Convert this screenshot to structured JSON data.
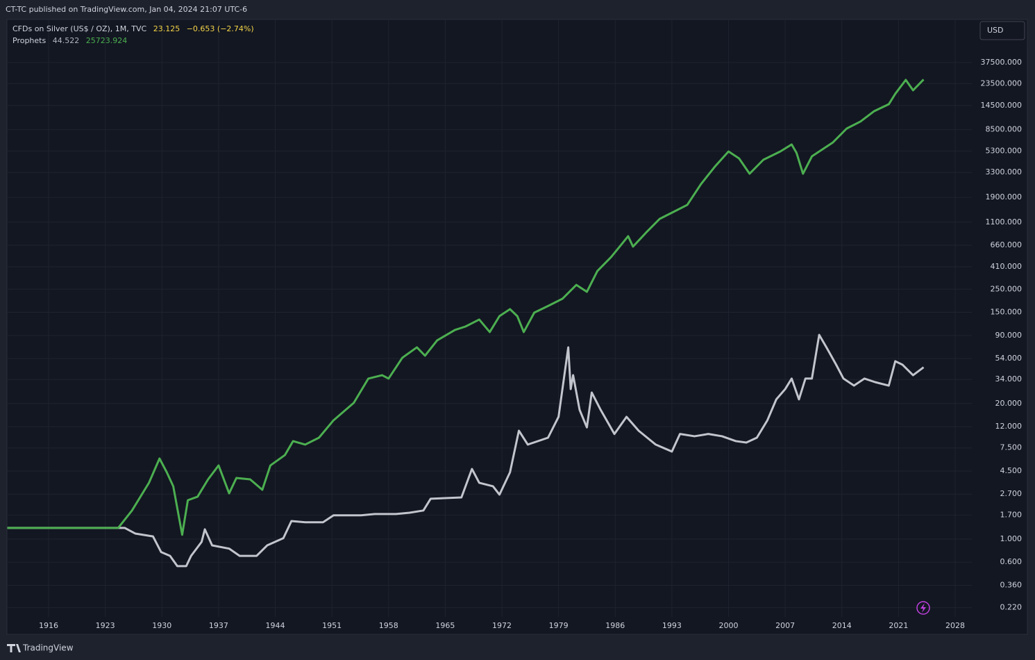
{
  "header": {
    "published": "CT-TC published on TradingView.com, Jan 04, 2024 21:07 UTC-6",
    "currency": "USD",
    "footer": "TradingView"
  },
  "chart_data": {
    "type": "line",
    "log_scale": true,
    "grid": true,
    "xlim": [
      1910.85,
      2030.06
    ],
    "xticks": [
      1916,
      1923,
      1930,
      1937,
      1944,
      1951,
      1958,
      1965,
      1972,
      1979,
      1986,
      1993,
      2000,
      2007,
      2014,
      2021,
      2028
    ],
    "ylim": [
      0.179,
      97000
    ],
    "yticks": [
      {
        "value": 0.22,
        "label": "0.220"
      },
      {
        "value": 0.36,
        "label": "0.360"
      },
      {
        "value": 0.6,
        "label": "0.600"
      },
      {
        "value": 1,
        "label": "1.000"
      },
      {
        "value": 1.7,
        "label": "1.700"
      },
      {
        "value": 2.7,
        "label": "2.700"
      },
      {
        "value": 4.5,
        "label": "4.500"
      },
      {
        "value": 7.5,
        "label": "7.500"
      },
      {
        "value": 12,
        "label": "12.000"
      },
      {
        "value": 20,
        "label": "20.000"
      },
      {
        "value": 34,
        "label": "34.000"
      },
      {
        "value": 54,
        "label": "54.000"
      },
      {
        "value": 90,
        "label": "90.000"
      },
      {
        "value": 150,
        "label": "150.000"
      },
      {
        "value": 250,
        "label": "250.000"
      },
      {
        "value": 410,
        "label": "410.000"
      },
      {
        "value": 660,
        "label": "660.000"
      },
      {
        "value": 1100,
        "label": "1100.000"
      },
      {
        "value": 1900,
        "label": "1900.000"
      },
      {
        "value": 3300,
        "label": "3300.000"
      },
      {
        "value": 5300,
        "label": "5300.000"
      },
      {
        "value": 8500,
        "label": "8500.000"
      },
      {
        "value": 14500,
        "label": "14500.000"
      },
      {
        "value": 23500,
        "label": "23500.000"
      },
      {
        "value": 37500,
        "label": "37500.000"
      }
    ],
    "series": [
      {
        "name": "CFDs on Silver (US$ / OZ), 1M, TVC",
        "color": "#c3c5cd",
        "legend_values": [
          "23.125",
          "−0.653 (−2.74%)"
        ],
        "legend_color": "#f5d547",
        "x": [
          1910.9,
          1924.6,
          1925.4,
          1926.7,
          1928.9,
          1929.9,
          1931.0,
          1931.9,
          1933.0,
          1933.6,
          1934.9,
          1935.3,
          1936.2,
          1938.3,
          1939.6,
          1941.7,
          1943.0,
          1945.0,
          1946.0,
          1947.7,
          1949.9,
          1951.2,
          1954.6,
          1956.3,
          1958.9,
          1960.6,
          1962.3,
          1963.2,
          1967.0,
          1968.3,
          1969.2,
          1970.9,
          1971.7,
          1973.0,
          1974.1,
          1975.2,
          1977.7,
          1979.0,
          1980.2,
          1980.5,
          1980.8,
          1981.6,
          1982.5,
          1983.1,
          1984.2,
          1985.9,
          1987.4,
          1988.9,
          1991.0,
          1993.0,
          1994.0,
          1995.8,
          1997.5,
          1999.2,
          2000.9,
          2002.2,
          2003.5,
          2004.8,
          2005.9,
          2007.0,
          2007.8,
          2008.7,
          2009.5,
          2010.3,
          2011.2,
          2012.1,
          2013.3,
          2014.2,
          2015.5,
          2016.8,
          2018.1,
          2019.8,
          2020.6,
          2021.5,
          2022.8,
          2024.1
        ],
        "values": [
          1.28,
          1.28,
          1.28,
          1.13,
          1.06,
          0.75,
          0.69,
          0.55,
          0.55,
          0.69,
          0.94,
          1.24,
          0.87,
          0.81,
          0.69,
          0.69,
          0.87,
          1.02,
          1.49,
          1.45,
          1.45,
          1.69,
          1.69,
          1.74,
          1.74,
          1.79,
          1.88,
          2.44,
          2.51,
          4.71,
          3.47,
          3.21,
          2.67,
          4.37,
          10.96,
          8.07,
          9.4,
          14.9,
          69.2,
          27.5,
          37.4,
          17.4,
          11.8,
          25.5,
          17.4,
          10.2,
          14.9,
          10.96,
          8.07,
          6.92,
          10.2,
          9.7,
          10.2,
          9.7,
          8.71,
          8.44,
          9.4,
          13.8,
          21.9,
          27.5,
          34.7,
          21.9,
          34.7,
          34.7,
          91.2,
          69.2,
          47.1,
          34.7,
          29.7,
          34.7,
          32.1,
          29.7,
          50.9,
          47.1,
          37.4,
          44.522
        ]
      },
      {
        "name": "Prophets",
        "color": "#4caf50",
        "legend_values": [
          "44.522",
          "25723.924"
        ],
        "legend_color": "#4caf50",
        "x": [
          1910.9,
          1924.6,
          1926.3,
          1928.4,
          1929.7,
          1930.6,
          1931.4,
          1932.5,
          1933.2,
          1934.4,
          1935.7,
          1937.0,
          1938.3,
          1939.2,
          1940.9,
          1942.4,
          1943.4,
          1945.2,
          1946.2,
          1947.7,
          1949.4,
          1951.2,
          1953.7,
          1955.5,
          1957.2,
          1958.0,
          1959.7,
          1961.5,
          1962.5,
          1964.0,
          1966.2,
          1967.5,
          1969.2,
          1970.5,
          1971.7,
          1973.0,
          1973.9,
          1974.7,
          1976.0,
          1977.8,
          1979.5,
          1981.2,
          1982.5,
          1983.8,
          1985.5,
          1987.6,
          1988.2,
          1989.8,
          1991.5,
          1993.2,
          1994.9,
          1996.6,
          1998.3,
          2000.0,
          2001.3,
          2002.6,
          2004.3,
          2006.4,
          2007.8,
          2008.4,
          2009.2,
          2010.3,
          2012.9,
          2014.6,
          2016.3,
          2018.0,
          2019.8,
          2020.6,
          2021.9,
          2022.8,
          2024.1
        ],
        "values": [
          1.28,
          1.28,
          1.88,
          3.47,
          5.93,
          4.37,
          3.21,
          1.1,
          2.36,
          2.55,
          3.74,
          5.09,
          2.75,
          3.86,
          3.74,
          2.97,
          5.09,
          6.41,
          8.71,
          8.07,
          9.4,
          13.8,
          20.3,
          34.7,
          37.4,
          34.7,
          55,
          69.2,
          57.5,
          80.7,
          101.6,
          109.6,
          127.9,
          97,
          138,
          161,
          138,
          97,
          149,
          174,
          203,
          275,
          236,
          374,
          509,
          807,
          641,
          871,
          1184,
          1380,
          1610,
          2553,
          3743,
          5248,
          4500,
          3210,
          4365,
          5248,
          6124,
          5093,
          3210,
          4710,
          6412,
          8710,
          10160,
          12790,
          14900,
          18750,
          25520,
          20270,
          25723.924
        ]
      }
    ]
  }
}
